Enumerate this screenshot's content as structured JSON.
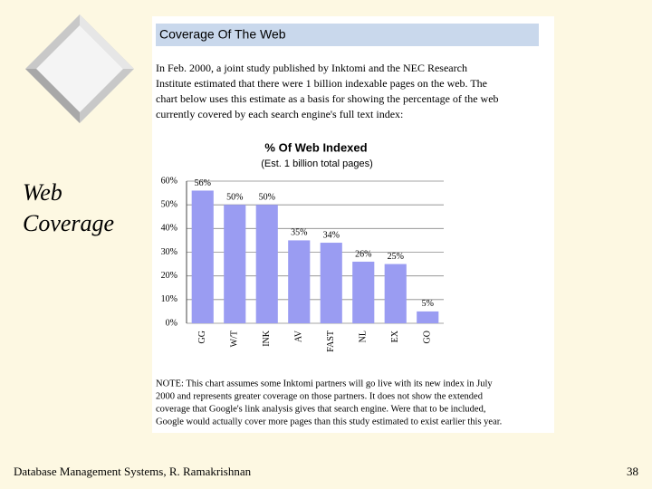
{
  "slide": {
    "title_lines": [
      "Web",
      "Coverage"
    ],
    "footer": "Database Management Systems, R. Ramakrishnan",
    "page_number": "38"
  },
  "panel": {
    "heading": "Coverage Of The Web",
    "intro_lines": [
      "In Feb. 2000, a joint study published by Inktomi and the NEC Research",
      "Institute estimated that there were 1 billion indexable pages on the web. The",
      "chart below uses this estimate as a basis for showing the percentage of the web",
      "currently covered by each search engine's full text index:"
    ],
    "note_lines": [
      "NOTE: This chart assumes some Inktomi partners will go live with its new index in July",
      "2000 and represents greater coverage on those partners. It does not show the extended",
      "coverage that Google's link analysis gives that search engine. Were that to be included,",
      "Google would actually cover more pages than this study estimated to exist earlier this year."
    ]
  },
  "chart_data": {
    "type": "bar",
    "title": "% Of Web Indexed",
    "subtitle": "(Est. 1 billion total pages)",
    "categories": [
      "GG",
      "W/T",
      "INK",
      "AV",
      "FAST",
      "NL",
      "EX",
      "GO"
    ],
    "values": [
      56,
      50,
      50,
      35,
      34,
      26,
      25,
      5
    ],
    "value_labels": [
      "56%",
      "50%",
      "50%",
      "35%",
      "34%",
      "26%",
      "25%",
      "5%"
    ],
    "color": "#9a9cf2",
    "ylim": [
      0,
      60
    ],
    "yticks": [
      {
        "value": 0,
        "label": "0%"
      },
      {
        "value": 10,
        "label": "10%"
      },
      {
        "value": 20,
        "label": "20%"
      },
      {
        "value": 30,
        "label": "30%"
      },
      {
        "value": 40,
        "label": "40%"
      },
      {
        "value": 50,
        "label": "50%"
      },
      {
        "value": 60,
        "label": "60%"
      }
    ],
    "grid": true
  }
}
